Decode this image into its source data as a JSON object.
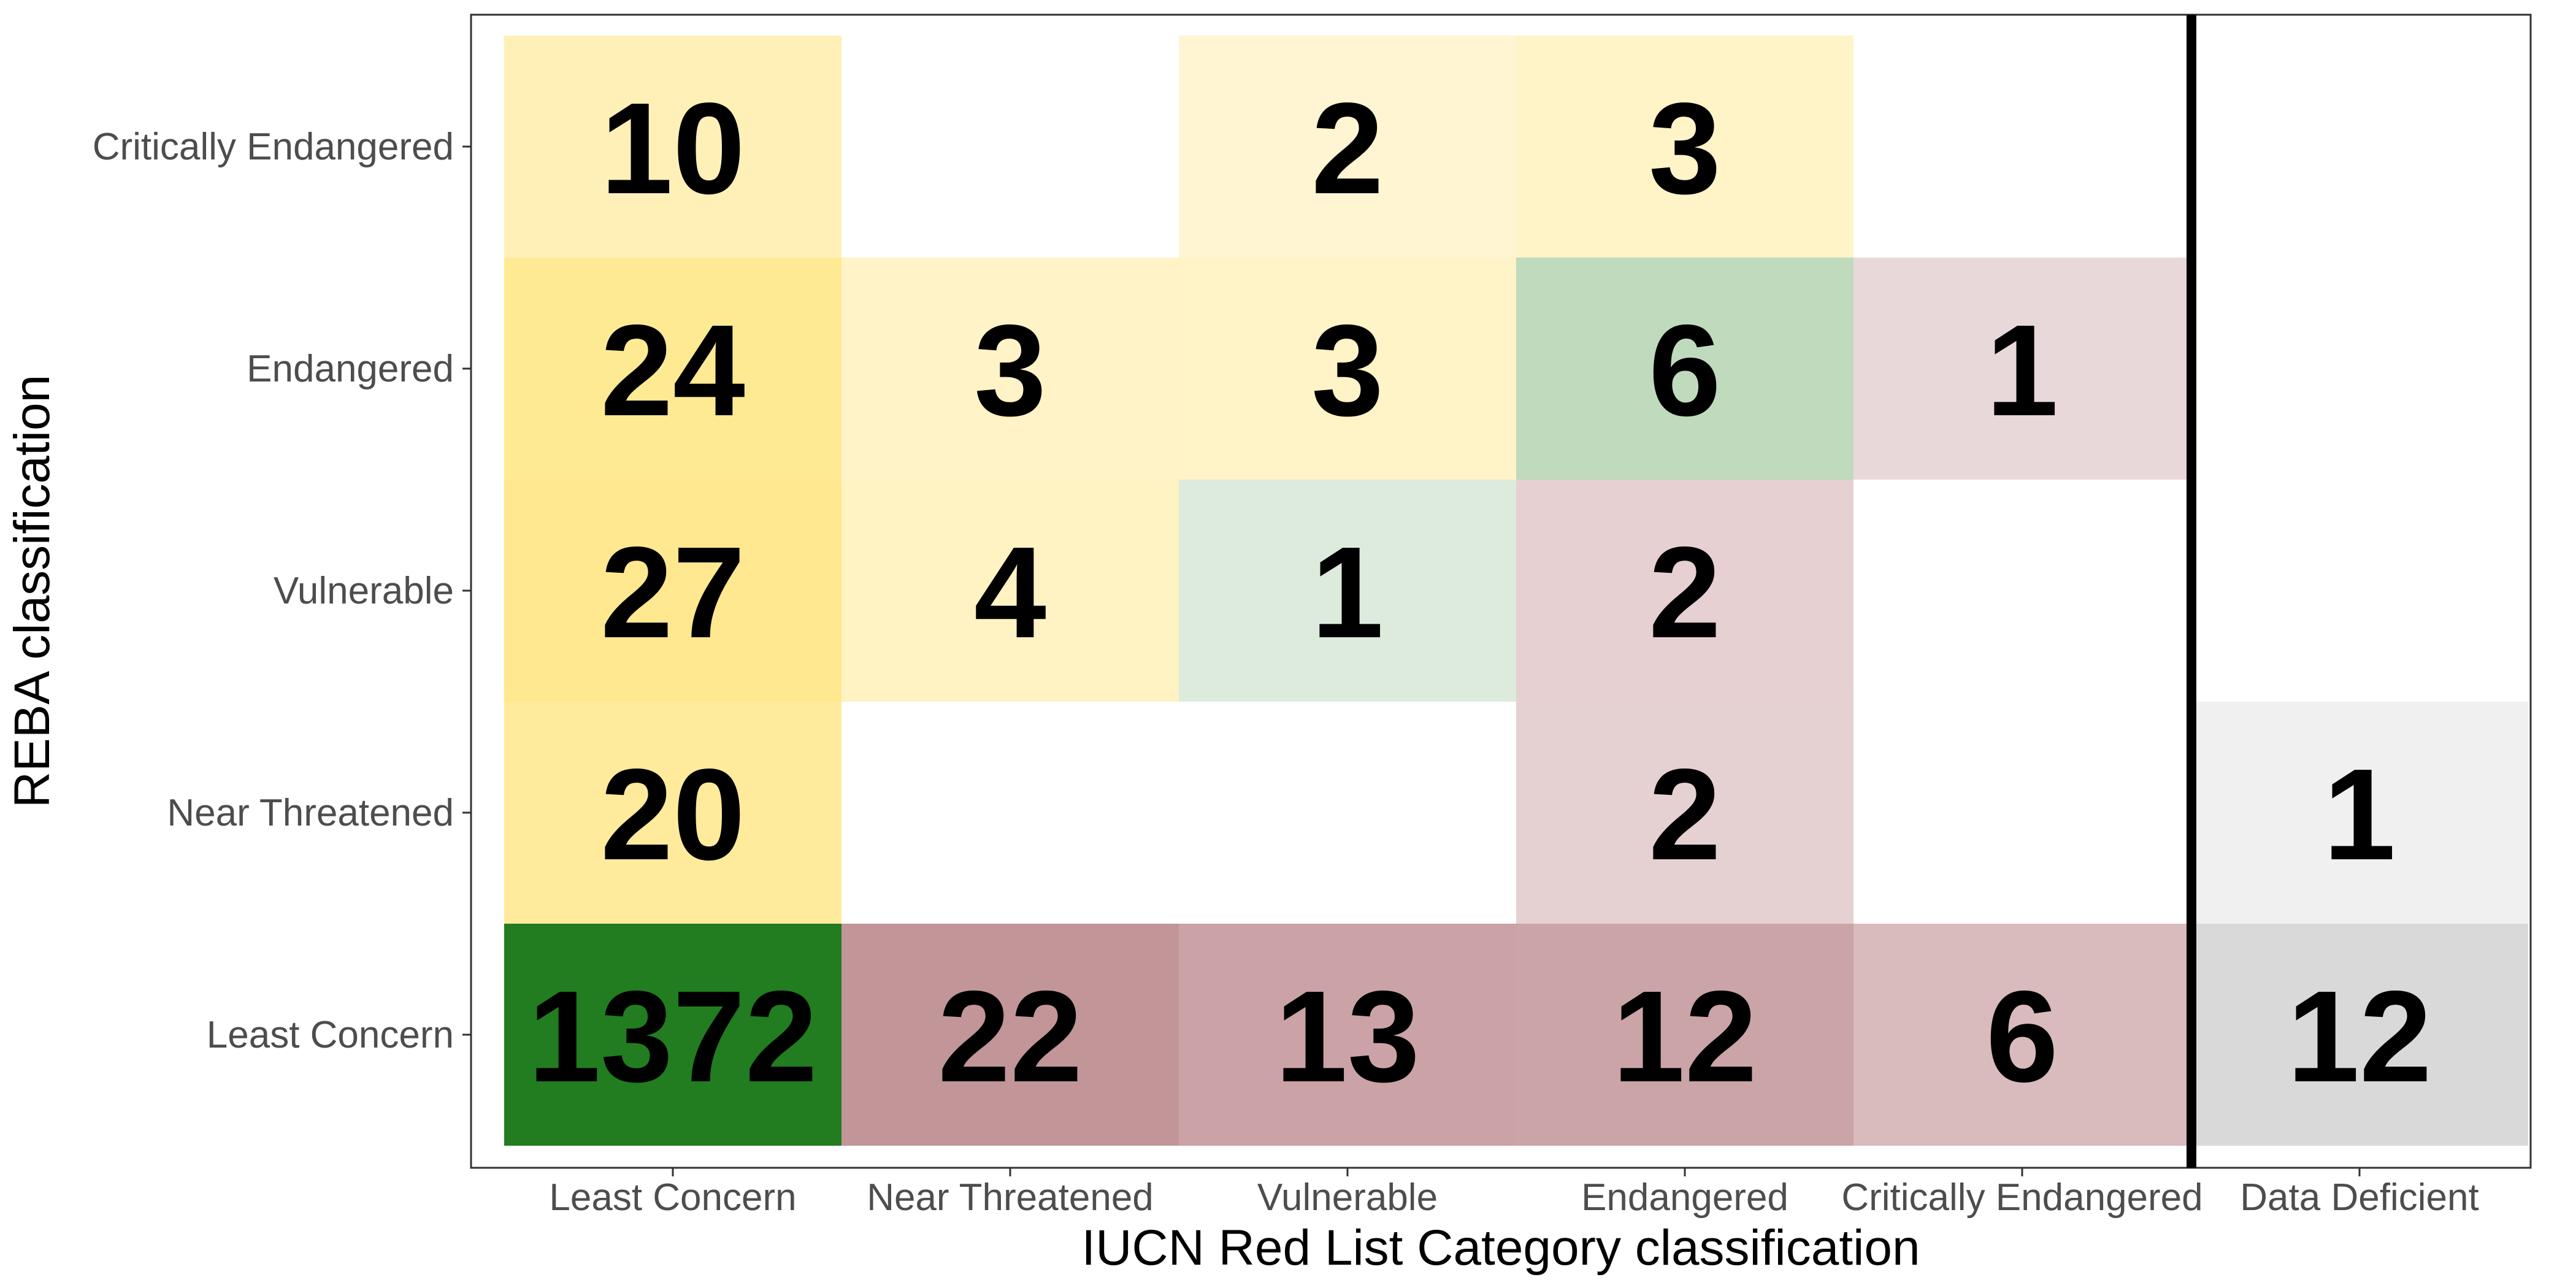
{
  "chart_data": {
    "type": "heatmap",
    "title": "",
    "xlabel": "IUCN Red List Category classification",
    "ylabel": "REBA classification",
    "x_categories": [
      "Least Concern",
      "Near Threatened",
      "Vulnerable",
      "Endangered",
      "Critically Endangered",
      "Data Deficient"
    ],
    "y_categories": [
      "Least Concern",
      "Near Threatened",
      "Vulnerable",
      "Endangered",
      "Critically Endangered"
    ],
    "separator_after_x_category": "Critically Endangered",
    "grid": false,
    "legend": "none",
    "cells": [
      {
        "x": "Least Concern",
        "y": "Critically Endangered",
        "value": 10,
        "color": "#fff0b8"
      },
      {
        "x": "Vulnerable",
        "y": "Critically Endangered",
        "value": 2,
        "color": "#fff5d2"
      },
      {
        "x": "Endangered",
        "y": "Critically Endangered",
        "value": 3,
        "color": "#fff3c8"
      },
      {
        "x": "Least Concern",
        "y": "Endangered",
        "value": 24,
        "color": "#ffea94"
      },
      {
        "x": "Near Threatened",
        "y": "Endangered",
        "value": 3,
        "color": "#fff3c7"
      },
      {
        "x": "Vulnerable",
        "y": "Endangered",
        "value": 3,
        "color": "#fff3c8"
      },
      {
        "x": "Endangered",
        "y": "Endangered",
        "value": 6,
        "color": "#bfdabd"
      },
      {
        "x": "Critically Endangered",
        "y": "Endangered",
        "value": 1,
        "color": "#e9d8da"
      },
      {
        "x": "Least Concern",
        "y": "Vulnerable",
        "value": 27,
        "color": "#ffe88f"
      },
      {
        "x": "Near Threatened",
        "y": "Vulnerable",
        "value": 4,
        "color": "#fff2c3"
      },
      {
        "x": "Vulnerable",
        "y": "Vulnerable",
        "value": 1,
        "color": "#ddebdd"
      },
      {
        "x": "Endangered",
        "y": "Vulnerable",
        "value": 2,
        "color": "#e6d0d2"
      },
      {
        "x": "Least Concern",
        "y": "Near Threatened",
        "value": 20,
        "color": "#ffeb9b"
      },
      {
        "x": "Endangered",
        "y": "Near Threatened",
        "value": 2,
        "color": "#e6d1d2"
      },
      {
        "x": "Data Deficient",
        "y": "Near Threatened",
        "value": 1,
        "color": "#f0f0f0"
      },
      {
        "x": "Least Concern",
        "y": "Least Concern",
        "value": 1372,
        "color": "#217d1f"
      },
      {
        "x": "Near Threatened",
        "y": "Least Concern",
        "value": 22,
        "color": "#c29598"
      },
      {
        "x": "Vulnerable",
        "y": "Least Concern",
        "value": 13,
        "color": "#cba2a6"
      },
      {
        "x": "Endangered",
        "y": "Least Concern",
        "value": 12,
        "color": "#cba4a8"
      },
      {
        "x": "Critically Endangered",
        "y": "Least Concern",
        "value": 6,
        "color": "#d9babd"
      },
      {
        "x": "Data Deficient",
        "y": "Least Concern",
        "value": 12,
        "color": "#d9d9d9"
      }
    ]
  }
}
